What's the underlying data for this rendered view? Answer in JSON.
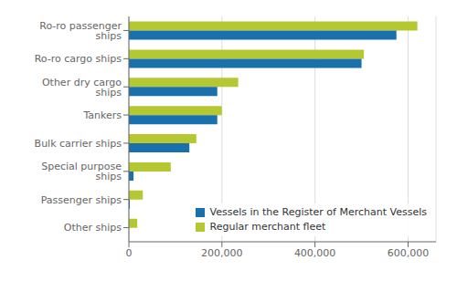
{
  "chart_data": {
    "type": "bar",
    "orientation": "horizontal",
    "categories": [
      "Other ships",
      "Passenger ships",
      "Special purpose ships",
      "Bulk carrier ships",
      "Tankers",
      "Other dry cargo ships",
      "Ro-ro cargo ships",
      "Ro-ro passenger ships"
    ],
    "series": [
      {
        "name": "Vessels in the Register of Merchant Vessels",
        "color": "#1a6fad",
        "values": [
          0,
          2000,
          10000,
          130000,
          190000,
          190000,
          500000,
          575000
        ]
      },
      {
        "name": "Regular merchant fleet",
        "color": "#b5c832",
        "values": [
          18000,
          30000,
          90000,
          145000,
          200000,
          235000,
          505000,
          620000
        ]
      }
    ],
    "xlim": [
      0,
      660000
    ],
    "xticks": [
      0,
      {
        "value": 200000,
        "label": "200,000"
      },
      {
        "value": 400000,
        "label": "400,000"
      },
      {
        "value": 600000,
        "label": "600,000"
      }
    ],
    "grid": true,
    "legend": "lower right"
  }
}
